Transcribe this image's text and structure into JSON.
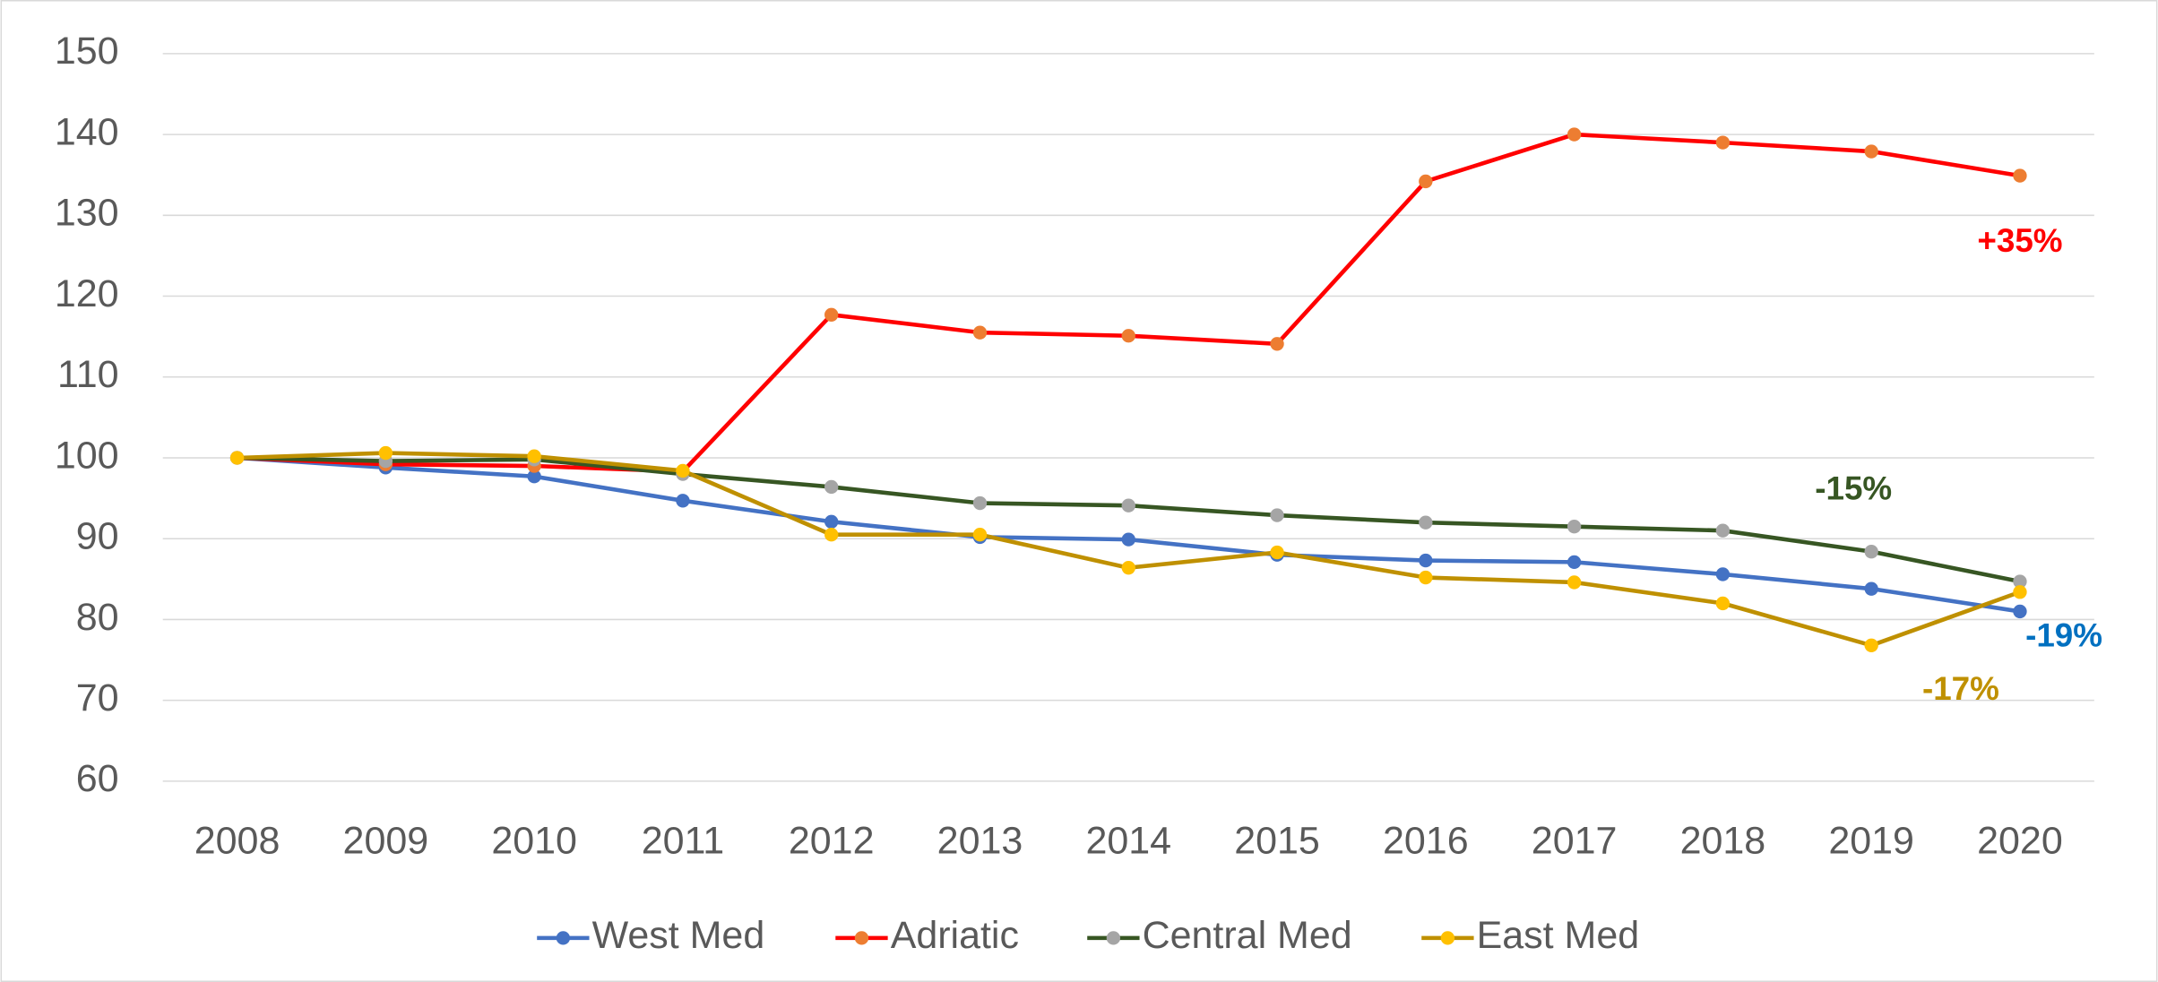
{
  "chart_data": {
    "type": "line",
    "categories": [
      "2008",
      "2009",
      "2010",
      "2011",
      "2012",
      "2013",
      "2014",
      "2015",
      "2016",
      "2017",
      "2018",
      "2019",
      "2020"
    ],
    "ylim": [
      60,
      150
    ],
    "yticks": [
      60,
      70,
      80,
      90,
      100,
      110,
      120,
      130,
      140,
      150
    ],
    "grid": true,
    "legend": "bottom",
    "series": [
      {
        "name": "West Med",
        "color": "#4472c4",
        "marker_color": "#4472c4",
        "label": "-19%",
        "label_color": "#0070c0",
        "values": [
          100,
          98.8,
          97.7,
          94.7,
          92.1,
          90.2,
          89.9,
          88.0,
          87.3,
          87.1,
          85.6,
          83.8,
          81.0
        ]
      },
      {
        "name": "Adriatic",
        "color": "#ff0000",
        "marker_color": "#ed7d31",
        "label": "+35%",
        "label_color": "#ff0000",
        "values": [
          100,
          99.2,
          99.0,
          98.3,
          117.7,
          115.5,
          115.1,
          114.1,
          134.2,
          140.0,
          139.0,
          137.9,
          134.9
        ]
      },
      {
        "name": "Central Med",
        "color": "#375623",
        "marker_color": "#a5a5a5",
        "label": "-15%",
        "label_color": "#375623",
        "values": [
          100,
          99.6,
          99.8,
          98.0,
          96.4,
          94.4,
          94.1,
          92.9,
          92.0,
          91.5,
          91.0,
          88.4,
          84.7
        ]
      },
      {
        "name": "East Med",
        "color": "#bf9000",
        "marker_color": "#ffc000",
        "label": "-17%",
        "label_color": "#bf9000",
        "values": [
          100,
          100.6,
          100.2,
          98.4,
          90.5,
          90.5,
          86.4,
          88.3,
          85.2,
          84.6,
          82.0,
          76.8,
          83.4
        ]
      }
    ]
  }
}
